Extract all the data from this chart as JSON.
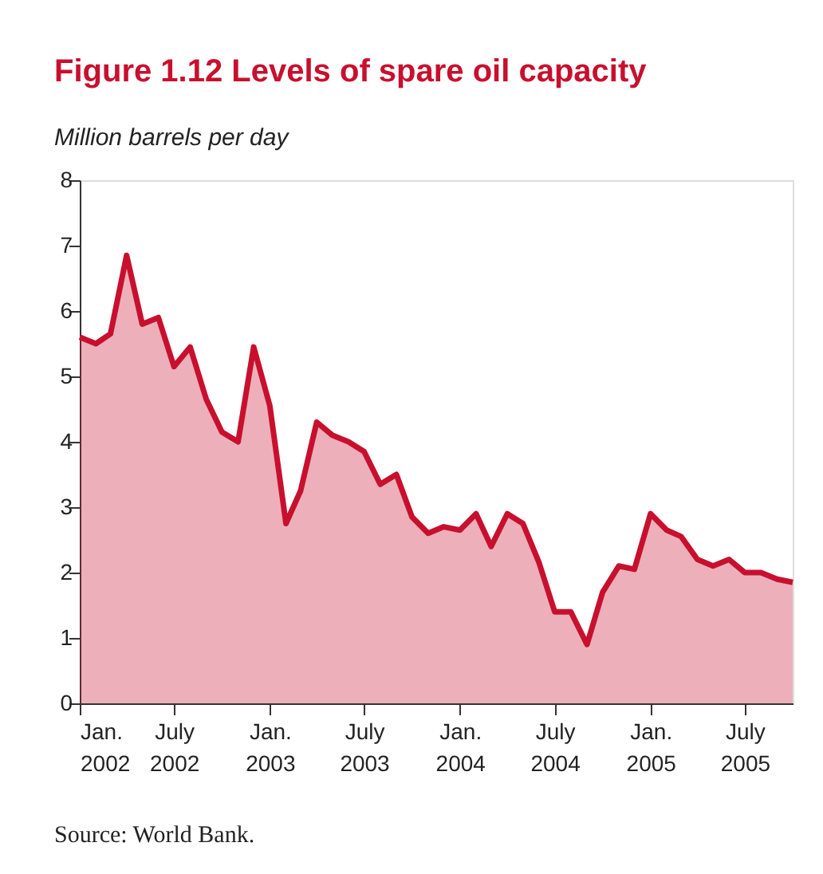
{
  "chart_data": {
    "type": "area",
    "title": "Figure 1.12  Levels of spare oil capacity",
    "ylabel": "Million barrels per day",
    "x": [
      "2002-01",
      "2002-02",
      "2002-03",
      "2002-04",
      "2002-05",
      "2002-06",
      "2002-07",
      "2002-08",
      "2002-09",
      "2002-10",
      "2002-11",
      "2002-12",
      "2003-01",
      "2003-02",
      "2003-03",
      "2003-04",
      "2003-05",
      "2003-06",
      "2003-07",
      "2003-08",
      "2003-09",
      "2003-10",
      "2003-11",
      "2003-12",
      "2004-01",
      "2004-02",
      "2004-03",
      "2004-04",
      "2004-05",
      "2004-06",
      "2004-07",
      "2004-08",
      "2004-09",
      "2004-10",
      "2004-11",
      "2004-12",
      "2005-01",
      "2005-02",
      "2005-03",
      "2005-04",
      "2005-05",
      "2005-06",
      "2005-07",
      "2005-08",
      "2005-09",
      "2005-10"
    ],
    "series": [
      {
        "color": "#c8102e",
        "values": [
          5.6,
          5.5,
          5.65,
          6.85,
          5.8,
          5.9,
          5.15,
          5.45,
          4.65,
          4.15,
          4.0,
          5.45,
          4.55,
          2.75,
          3.25,
          4.3,
          4.1,
          4.0,
          3.85,
          3.35,
          3.5,
          2.85,
          2.6,
          2.7,
          2.65,
          2.9,
          2.4,
          2.9,
          2.75,
          2.15,
          1.4,
          1.4,
          0.9,
          1.7,
          2.1,
          2.05,
          2.9,
          2.65,
          2.55,
          2.2,
          2.1,
          2.2,
          2.0,
          2.0,
          1.9,
          1.85
        ]
      }
    ],
    "xlim": [
      "2002-01",
      "2005-10"
    ],
    "xticks": [
      {
        "value": "2002-01",
        "label": "Jan. 2002"
      },
      {
        "value": "2002-07",
        "label": "July 2002"
      },
      {
        "value": "2003-01",
        "label": "Jan. 2003"
      },
      {
        "value": "2003-07",
        "label": "July 2003"
      },
      {
        "value": "2004-01",
        "label": "Jan. 2004"
      },
      {
        "value": "2004-07",
        "label": "July 2004"
      },
      {
        "value": "2005-01",
        "label": "Jan. 2005"
      },
      {
        "value": "2005-07",
        "label": "July 2005"
      }
    ],
    "ylim": [
      0,
      8
    ],
    "yticks": [
      0,
      1,
      2,
      3,
      4,
      5,
      6,
      7,
      8
    ],
    "grid": false,
    "annotations": [
      "Source: World Bank."
    ]
  }
}
